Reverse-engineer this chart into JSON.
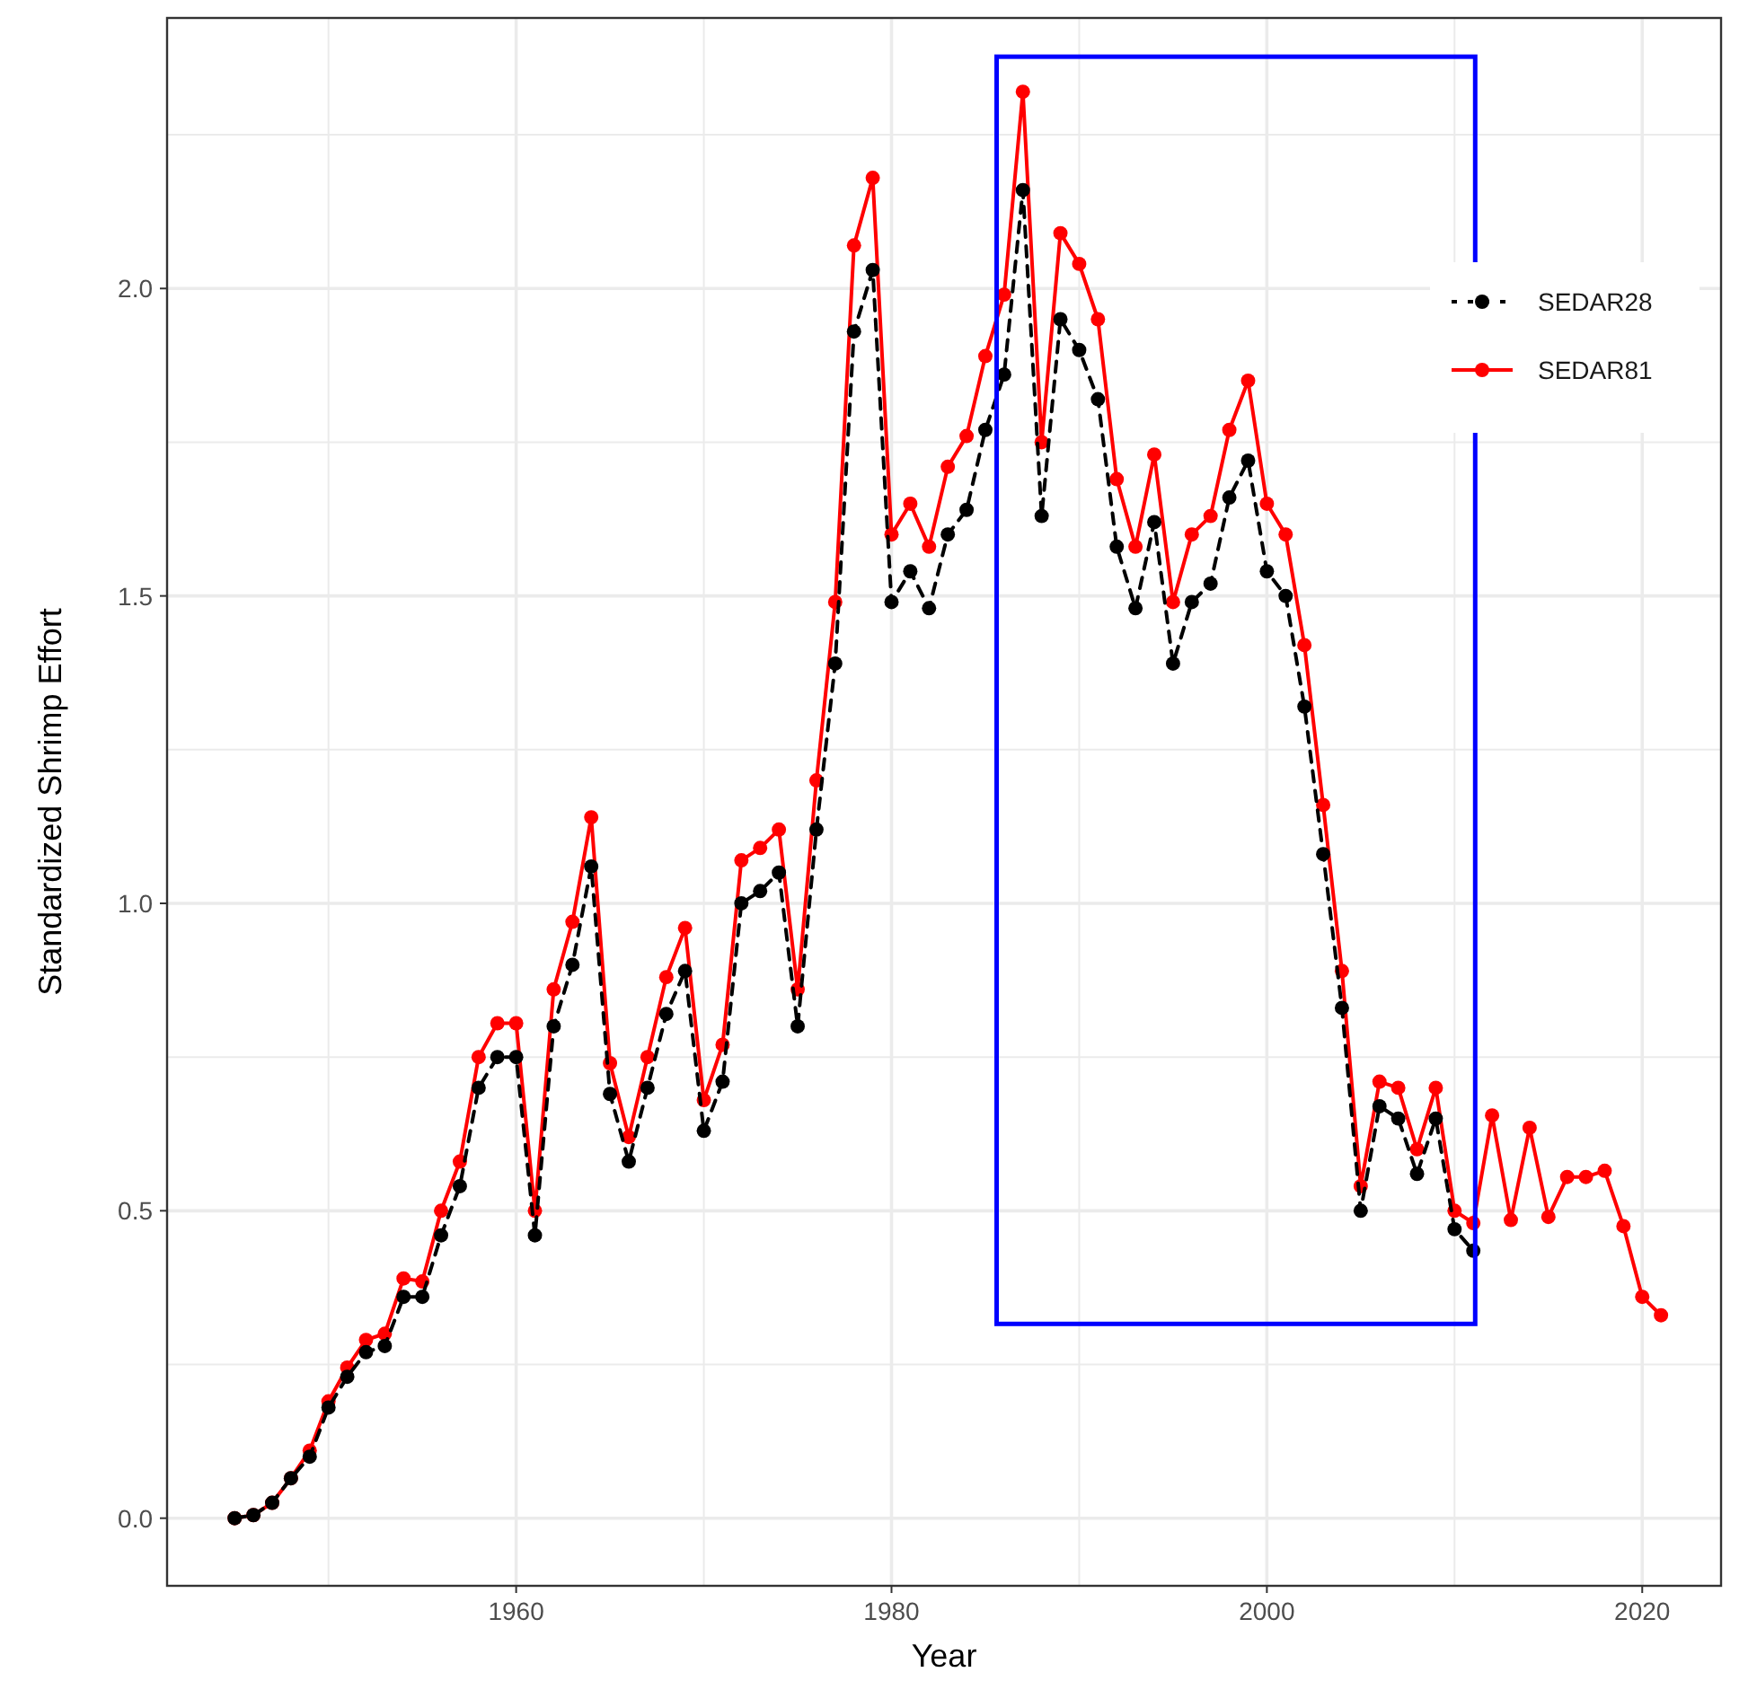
{
  "chart_data": {
    "type": "line",
    "xlabel": "Year",
    "ylabel": "Standardized Shrimp Effort",
    "xlim": [
      1941.4,
      2024.2
    ],
    "ylim": [
      -0.11,
      2.44
    ],
    "xticks": [
      {
        "value": 1950,
        "label": null
      },
      1960,
      {
        "value": 1970,
        "label": null
      },
      1980,
      {
        "value": 1990,
        "label": null
      },
      2000,
      {
        "value": 2010,
        "label": null
      },
      2020
    ],
    "yticks": [
      "0.0",
      {
        "value": 0.25,
        "label": null
      },
      {
        "value": 0.5,
        "label": "0.5"
      },
      {
        "value": 0.75,
        "label": null
      },
      {
        "value": 1,
        "label": "1.0"
      },
      {
        "value": 1.25,
        "label": null
      },
      {
        "value": 1.5,
        "label": "1.5"
      },
      {
        "value": 1.75,
        "label": null
      },
      {
        "value": 2,
        "label": "2.0"
      },
      {
        "value": 2.25,
        "label": null
      }
    ],
    "grid": true,
    "legend": "top right",
    "marker": "circle",
    "series": [
      {
        "name": "SEDAR28",
        "color": "#000000",
        "line_style": "dashed",
        "x": [
          1945,
          1946,
          1947,
          1948,
          1949,
          1950,
          1951,
          1952,
          1953,
          1954,
          1955,
          1956,
          1957,
          1958,
          1959,
          1960,
          1961,
          1962,
          1963,
          1964,
          1965,
          1966,
          1967,
          1968,
          1969,
          1970,
          1971,
          1972,
          1973,
          1974,
          1975,
          1976,
          1977,
          1978,
          1979,
          1980,
          1981,
          1982,
          1983,
          1984,
          1985,
          1986,
          1987,
          1988,
          1989,
          1990,
          1991,
          1992,
          1993,
          1994,
          1995,
          1996,
          1997,
          1998,
          1999,
          2000,
          2001,
          2002,
          2003,
          2004,
          2005,
          2006,
          2007,
          2008,
          2009,
          2010,
          2011
        ],
        "values": [
          0.0,
          0.005,
          0.025,
          0.065,
          0.1,
          0.18,
          0.23,
          0.27,
          0.28,
          0.36,
          0.36,
          0.46,
          0.54,
          0.7,
          0.75,
          0.75,
          0.46,
          0.8,
          0.9,
          1.06,
          0.69,
          0.58,
          0.7,
          0.82,
          0.89,
          0.63,
          0.71,
          1.0,
          1.02,
          1.05,
          0.8,
          1.12,
          1.39,
          1.93,
          2.03,
          1.49,
          1.54,
          1.48,
          1.6,
          1.64,
          1.77,
          1.86,
          2.16,
          1.63,
          1.95,
          1.9,
          1.82,
          1.58,
          1.48,
          1.62,
          1.39,
          1.49,
          1.52,
          1.66,
          1.72,
          1.54,
          1.5,
          1.32,
          1.08,
          0.83,
          0.5,
          0.67,
          0.65,
          0.56,
          0.65,
          0.47,
          0.435
        ]
      },
      {
        "name": "SEDAR81",
        "color": "#ff0000",
        "line_style": "solid",
        "x": [
          1945,
          1946,
          1947,
          1948,
          1949,
          1950,
          1951,
          1952,
          1953,
          1954,
          1955,
          1956,
          1957,
          1958,
          1959,
          1960,
          1961,
          1962,
          1963,
          1964,
          1965,
          1966,
          1967,
          1968,
          1969,
          1970,
          1971,
          1972,
          1973,
          1974,
          1975,
          1976,
          1977,
          1978,
          1979,
          1980,
          1981,
          1982,
          1983,
          1984,
          1985,
          1986,
          1987,
          1988,
          1989,
          1990,
          1991,
          1992,
          1993,
          1994,
          1995,
          1996,
          1997,
          1998,
          1999,
          2000,
          2001,
          2002,
          2003,
          2004,
          2005,
          2006,
          2007,
          2008,
          2009,
          2010,
          2011,
          2012,
          2013,
          2014,
          2015,
          2016,
          2017,
          2018,
          2019,
          2020,
          2021
        ],
        "values": [
          0.0,
          0.005,
          0.025,
          0.065,
          0.11,
          0.19,
          0.245,
          0.29,
          0.3,
          0.39,
          0.385,
          0.5,
          0.58,
          0.75,
          0.805,
          0.805,
          0.5,
          0.86,
          0.97,
          1.14,
          0.74,
          0.62,
          0.75,
          0.88,
          0.96,
          0.68,
          0.77,
          1.07,
          1.09,
          1.12,
          0.86,
          1.2,
          1.49,
          2.07,
          2.18,
          1.6,
          1.65,
          1.58,
          1.71,
          1.76,
          1.89,
          1.99,
          2.32,
          1.75,
          2.09,
          2.04,
          1.95,
          1.69,
          1.58,
          1.73,
          1.49,
          1.6,
          1.63,
          1.77,
          1.85,
          1.65,
          1.6,
          1.42,
          1.16,
          0.89,
          0.54,
          0.71,
          0.7,
          0.6,
          0.7,
          0.5,
          0.48,
          0.655,
          0.485,
          0.635,
          0.49,
          0.555,
          0.555,
          0.565,
          0.475,
          0.36,
          0.33
        ]
      }
    ]
  }
}
